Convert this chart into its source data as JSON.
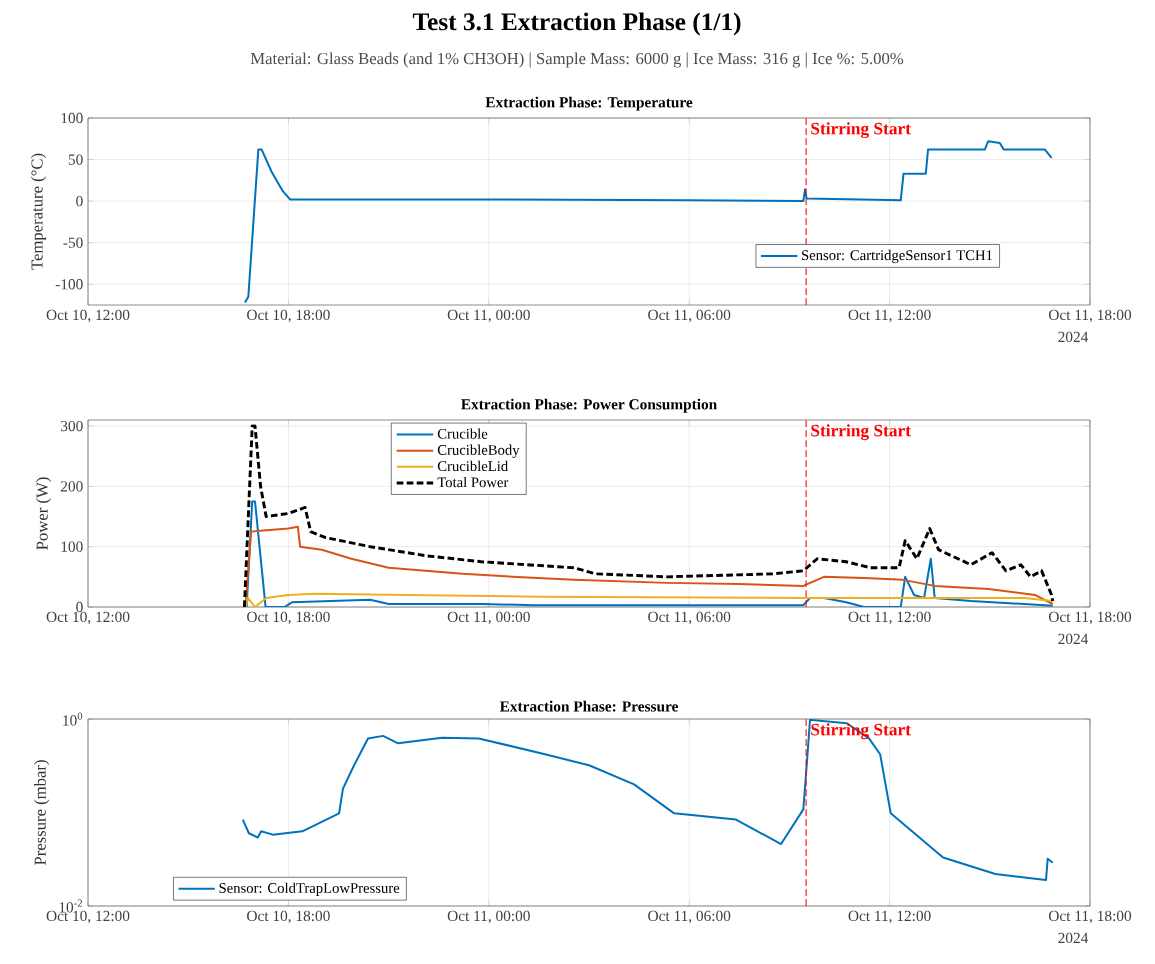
{
  "chart_data": [
    {
      "type": "other",
      "title": "Test 3.1 Extraction Phase (1/1)",
      "subtitle": "Material: Glass Beads (and 1% CH3OH) | Sample Mass: 6000 g | Ice Mass: 316 g | Ice %: 5.00%"
    },
    {
      "type": "line",
      "title": "Extraction Phase: Temperature",
      "ylabel": "Temperature (°C)",
      "xlim": [
        "2024-10-10T12:00",
        "2024-10-11T18:00"
      ],
      "xticks": [
        {
          "value": "2024-10-10T12:00",
          "label": "Oct 10, 12:00"
        },
        {
          "value": "2024-10-10T18:00",
          "label": "Oct 10, 18:00"
        },
        {
          "value": "2024-10-11T00:00",
          "label": "Oct 11, 00:00"
        },
        {
          "value": "2024-10-11T06:00",
          "label": "Oct 11, 06:00"
        },
        {
          "value": "2024-10-11T12:00",
          "label": "Oct 11, 12:00"
        },
        {
          "value": "2024-10-11T18:00",
          "label": "Oct 11, 18:00"
        }
      ],
      "ylim": [
        -125,
        100
      ],
      "yticks": [
        -100,
        -50,
        0,
        50,
        100
      ],
      "grid": true,
      "legend": "bottom right",
      "annotations": [
        "2024"
      ],
      "ref_lines": [
        {
          "axis": "x",
          "value": "2024-10-11T09:30",
          "label": "Stirring Start",
          "color": "#ff0000",
          "line_style": "dashed"
        }
      ],
      "series": [
        {
          "name": "Sensor: CartridgeSensor1 TCH1",
          "color": "#0072bd",
          "x": [
            "2024-10-10T16:42",
            "2024-10-10T16:48",
            "2024-10-10T17:06",
            "2024-10-10T17:12",
            "2024-10-10T17:30",
            "2024-10-10T17:50",
            "2024-10-10T18:03",
            "2024-10-11T00:00",
            "2024-10-11T06:00",
            "2024-10-11T09:25",
            "2024-10-11T09:28",
            "2024-10-11T09:31",
            "2024-10-11T12:20",
            "2024-10-11T12:25",
            "2024-10-11T13:05",
            "2024-10-11T13:09",
            "2024-10-11T14:51",
            "2024-10-11T14:57",
            "2024-10-11T15:18",
            "2024-10-11T15:25",
            "2024-10-11T16:39",
            "2024-10-11T16:51"
          ],
          "values": [
            -122,
            -115,
            62,
            62,
            35,
            12,
            2,
            2,
            1,
            0,
            14,
            3,
            1,
            33,
            33,
            62,
            62,
            72,
            70,
            62,
            62,
            52
          ]
        }
      ]
    },
    {
      "type": "line",
      "title": "Extraction Phase: Power Consumption",
      "ylabel": "Power (W)",
      "xlim": [
        "2024-10-10T12:00",
        "2024-10-11T18:00"
      ],
      "xticks": [
        {
          "value": "2024-10-10T12:00",
          "label": "Oct 10, 12:00"
        },
        {
          "value": "2024-10-10T18:00",
          "label": "Oct 10, 18:00"
        },
        {
          "value": "2024-10-11T00:00",
          "label": "Oct 11, 00:00"
        },
        {
          "value": "2024-10-11T06:00",
          "label": "Oct 11, 06:00"
        },
        {
          "value": "2024-10-11T12:00",
          "label": "Oct 11, 12:00"
        },
        {
          "value": "2024-10-11T18:00",
          "label": "Oct 11, 18:00"
        }
      ],
      "ylim": [
        0,
        310
      ],
      "yticks": [
        0,
        100,
        200,
        300
      ],
      "grid": true,
      "legend": "top",
      "annotations": [
        "2024"
      ],
      "ref_lines": [
        {
          "axis": "x",
          "value": "2024-10-11T09:30",
          "label": "Stirring Start",
          "color": "#ff0000",
          "line_style": "dashed"
        }
      ],
      "series": [
        {
          "name": "Crucible",
          "color": "#0072bd",
          "x": [
            "2024-10-10T16:45",
            "2024-10-10T16:55",
            "2024-10-10T17:00",
            "2024-10-10T17:19",
            "2024-10-10T17:53",
            "2024-10-10T18:07",
            "2024-10-10T20:27",
            "2024-10-10T21:00",
            "2024-10-10T23:47",
            "2024-10-11T01:20",
            "2024-10-11T09:25",
            "2024-10-11T09:37",
            "2024-10-11T10:02",
            "2024-10-11T10:42",
            "2024-10-11T11:14",
            "2024-10-11T12:20",
            "2024-10-11T12:28",
            "2024-10-11T12:44",
            "2024-10-11T13:02",
            "2024-10-11T13:14",
            "2024-10-11T13:21",
            "2024-10-11T14:26",
            "2024-10-11T16:02",
            "2024-10-11T16:53"
          ],
          "values": [
            0,
            175,
            175,
            0,
            0,
            8,
            12,
            5,
            5,
            3,
            3,
            15,
            15,
            8,
            0,
            0,
            50,
            20,
            15,
            80,
            15,
            10,
            5,
            2
          ]
        },
        {
          "name": "CrucibleBody",
          "color": "#d95319",
          "x": [
            "2024-10-10T16:43",
            "2024-10-10T16:53",
            "2024-10-10T18:00",
            "2024-10-10T18:17",
            "2024-10-10T18:21",
            "2024-10-10T19:00",
            "2024-10-10T19:53",
            "2024-10-10T21:00",
            "2024-10-10T23:13",
            "2024-10-11T01:27",
            "2024-10-11T02:33",
            "2024-10-11T05:20",
            "2024-10-11T07:29",
            "2024-10-11T09:25",
            "2024-10-11T10:02",
            "2024-10-11T11:14",
            "2024-10-11T12:24",
            "2024-10-11T13:21",
            "2024-10-11T14:58",
            "2024-10-11T16:21",
            "2024-10-11T16:53"
          ],
          "values": [
            0,
            125,
            130,
            133,
            100,
            95,
            80,
            65,
            55,
            48,
            45,
            40,
            38,
            35,
            50,
            48,
            45,
            35,
            30,
            20,
            5
          ]
        },
        {
          "name": "CrucibleLid",
          "color": "#edb120",
          "x": [
            "2024-10-10T16:43",
            "2024-10-10T16:47",
            "2024-10-10T17:00",
            "2024-10-10T17:20",
            "2024-10-10T18:00",
            "2024-10-10T18:47",
            "2024-10-10T21:33",
            "2024-10-11T01:27",
            "2024-10-11T09:25",
            "2024-10-11T16:02",
            "2024-10-11T16:53"
          ],
          "values": [
            0,
            15,
            0,
            15,
            20,
            22,
            20,
            17,
            15,
            15,
            10
          ]
        },
        {
          "name": "Total Power",
          "color": "#000000",
          "line_style": "dashed",
          "x": [
            "2024-10-10T16:41",
            "2024-10-10T16:55",
            "2024-10-10T17:00",
            "2024-10-10T17:10",
            "2024-10-10T17:20",
            "2024-10-10T18:00",
            "2024-10-10T18:30",
            "2024-10-10T18:40",
            "2024-10-10T19:07",
            "2024-10-10T20:27",
            "2024-10-10T22:07",
            "2024-10-10T23:47",
            "2024-10-11T02:33",
            "2024-10-11T03:12",
            "2024-10-11T05:20",
            "2024-10-11T08:32",
            "2024-10-11T09:25",
            "2024-10-11T09:50",
            "2024-10-11T10:42",
            "2024-10-11T11:26",
            "2024-10-11T12:17",
            "2024-10-11T12:28",
            "2024-10-11T12:49",
            "2024-10-11T13:12",
            "2024-10-11T13:28",
            "2024-10-11T14:26",
            "2024-10-11T15:04",
            "2024-10-11T15:29",
            "2024-10-11T15:56",
            "2024-10-11T16:13",
            "2024-10-11T16:33",
            "2024-10-11T16:51",
            "2024-10-11T16:53"
          ],
          "values": [
            0,
            300,
            300,
            200,
            150,
            155,
            165,
            125,
            115,
            100,
            85,
            75,
            65,
            55,
            50,
            55,
            60,
            80,
            75,
            65,
            65,
            110,
            80,
            130,
            95,
            70,
            90,
            60,
            70,
            50,
            60,
            20,
            10
          ]
        }
      ]
    },
    {
      "type": "line",
      "title": "Extraction Phase: Pressure",
      "ylabel": "Pressure (mbar)",
      "log": true,
      "xlim": [
        "2024-10-10T12:00",
        "2024-10-11T18:00"
      ],
      "xticks": [
        {
          "value": "2024-10-10T12:00",
          "label": "Oct 10, 12:00"
        },
        {
          "value": "2024-10-10T18:00",
          "label": "Oct 10, 18:00"
        },
        {
          "value": "2024-10-11T00:00",
          "label": "Oct 11, 00:00"
        },
        {
          "value": "2024-10-11T06:00",
          "label": "Oct 11, 06:00"
        },
        {
          "value": "2024-10-11T12:00",
          "label": "Oct 11, 12:00"
        },
        {
          "value": "2024-10-11T18:00",
          "label": "Oct 11, 18:00"
        }
      ],
      "ylim": [
        0.01,
        1
      ],
      "yticks": [
        {
          "value": 0.01,
          "label": "10$^{-2}$"
        },
        {
          "value": 1,
          "label": "10$^{0}$"
        }
      ],
      "grid": true,
      "legend": "bottom left",
      "annotations": [
        "2024"
      ],
      "ref_lines": [
        {
          "axis": "x",
          "value": "2024-10-11T09:30",
          "label": "Stirring Start",
          "color": "#ff0000",
          "line_style": "dashed"
        }
      ],
      "series": [
        {
          "name": "Sensor: ColdTrapLowPressure",
          "color": "#0072bd",
          "x": [
            "2024-10-10T16:38",
            "2024-10-10T16:49",
            "2024-10-10T17:05",
            "2024-10-10T17:11",
            "2024-10-10T17:32",
            "2024-10-10T18:25",
            "2024-10-10T19:31",
            "2024-10-10T19:38",
            "2024-10-10T19:58",
            "2024-10-10T20:23",
            "2024-10-10T20:50",
            "2024-10-10T21:17",
            "2024-10-10T22:36",
            "2024-10-10T23:42",
            "2024-10-11T01:41",
            "2024-10-11T03:00",
            "2024-10-11T04:21",
            "2024-10-11T05:33",
            "2024-10-11T07:24",
            "2024-10-11T08:45",
            "2024-10-11T09:25",
            "2024-10-11T09:32",
            "2024-10-11T09:37",
            "2024-10-11T10:43",
            "2024-10-11T11:23",
            "2024-10-11T11:43",
            "2024-10-11T12:02",
            "2024-10-11T13:36",
            "2024-10-11T15:10",
            "2024-10-11T16:41",
            "2024-10-11T16:44",
            "2024-10-11T16:53"
          ],
          "values": [
            0.084,
            0.06,
            0.054,
            0.063,
            0.058,
            0.063,
            0.098,
            0.18,
            0.32,
            0.62,
            0.66,
            0.55,
            0.63,
            0.62,
            0.42,
            0.32,
            0.2,
            0.098,
            0.084,
            0.046,
            0.108,
            0.38,
            0.98,
            0.9,
            0.62,
            0.42,
            0.098,
            0.033,
            0.022,
            0.019,
            0.032,
            0.029
          ]
        }
      ]
    }
  ]
}
